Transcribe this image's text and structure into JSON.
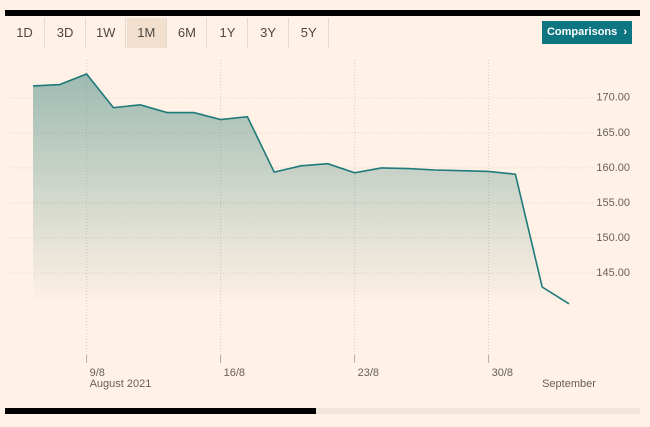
{
  "controls": {
    "ranges": [
      "1D",
      "3D",
      "1W",
      "1M",
      "6M",
      "1Y",
      "3Y",
      "5Y"
    ],
    "selected": 3,
    "comparisons": "Comparisons"
  },
  "chart_data": {
    "type": "area-line",
    "categories": [
      null,
      null,
      "9/8",
      null,
      null,
      null,
      null,
      "16/8",
      null,
      null,
      null,
      null,
      "23/8",
      null,
      null,
      null,
      null,
      "30/8",
      null,
      null,
      null
    ],
    "sublabels": [
      null,
      null,
      "August 2021",
      null,
      null,
      null,
      null,
      null,
      null,
      null,
      null,
      null,
      null,
      null,
      null,
      null,
      null,
      null,
      null,
      null,
      "September"
    ],
    "series": [
      {
        "color": "#1f7a7a",
        "values": [
          171.7,
          171.9,
          173.4,
          168.6,
          169.0,
          167.9,
          167.9,
          166.9,
          167.3,
          159.4,
          160.3,
          160.6,
          159.3,
          160.0,
          159.9,
          159.7,
          159.6,
          159.5,
          159.1,
          143.0,
          140.6
        ]
      }
    ],
    "ylim": [
      133.3,
      175.4
    ],
    "yticks": [
      {
        "value": 145,
        "label": "145.00"
      },
      {
        "value": 150,
        "label": "150.00"
      },
      {
        "value": 155,
        "label": "155.00"
      },
      {
        "value": 160,
        "label": "160.00"
      },
      {
        "value": 165,
        "label": "165.00"
      },
      {
        "value": 170,
        "label": "170.00"
      }
    ],
    "grid": true
  }
}
